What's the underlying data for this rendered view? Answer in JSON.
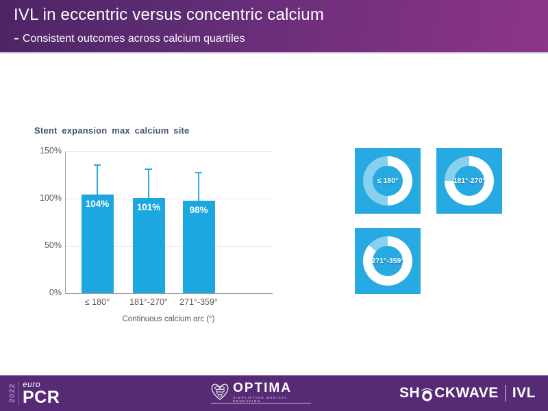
{
  "header": {
    "title": "IVL in eccentric versus concentric calcium",
    "subtitle_dash": "-",
    "subtitle_text": "Consistent outcomes across calcium quartiles"
  },
  "chart_data": {
    "type": "bar",
    "title": "Stent expansion max calcium site",
    "categories": [
      "≤ 180°",
      "181°-270°",
      "271°-359°"
    ],
    "values": [
      104,
      101,
      98
    ],
    "bar_labels": [
      "104%",
      "101%",
      "98%"
    ],
    "error_top": [
      136,
      132,
      128
    ],
    "xlabel": "Continuous calcium arc (°)",
    "ylabel": "",
    "ylim": [
      0,
      150
    ],
    "ytick_values": [
      0,
      50,
      100,
      150
    ],
    "yticks": [
      "0%",
      "50%",
      "100%",
      "150%"
    ],
    "grid": true,
    "legend": "none",
    "bar_color": "#1da7e0"
  },
  "donuts": {
    "square_color": "#27a9e1",
    "arc_white": "#ffffff",
    "arc_remainder": "rgba(255,255,255,0.45)",
    "items": [
      {
        "label": "≤ 180°",
        "white_deg": 180
      },
      {
        "label": "181°-270°",
        "white_deg": 270
      },
      {
        "label": "271°-359°",
        "white_deg": 310
      }
    ]
  },
  "footer": {
    "europcr": {
      "year": "2022",
      "euro": "euro",
      "pcr": "PCR"
    },
    "optima": {
      "name": "OPTIMA",
      "tagline": "SIMPLIFYING MEDICAL EDUCATION"
    },
    "shockwave": {
      "part1": "SH",
      "part2": "CKWAVE",
      "ivl": "IVL"
    }
  },
  "colors": {
    "header_gradient_left": "#4e2465",
    "header_gradient_right": "#8d3588",
    "footer_bg": "#572a75",
    "bar_blue": "#1da7e0",
    "card_blue": "#27a9e1",
    "chart_title": "#44546a",
    "axis_text": "#595959",
    "axis_line": "#9d9d9d",
    "gridline": "#e4e4e4"
  }
}
